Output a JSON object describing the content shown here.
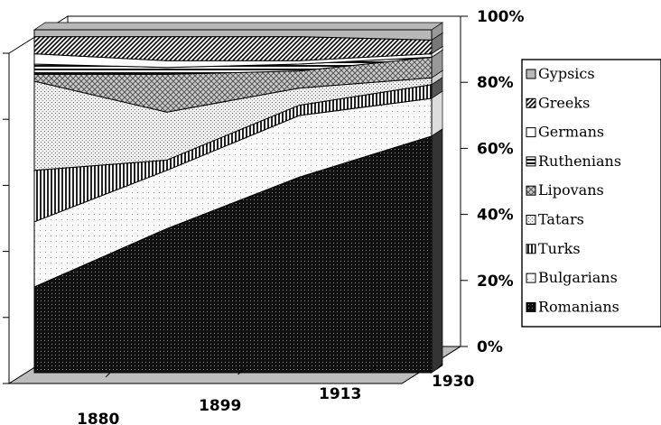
{
  "chart_data": {
    "type": "area",
    "stacked": "percent",
    "three_d": true,
    "categories": [
      "1880",
      "1899",
      "1913",
      "1930"
    ],
    "y_ticks": [
      "0%",
      "20%",
      "40%",
      "60%",
      "80%",
      "100%"
    ],
    "ylim": [
      0,
      100
    ],
    "legend_position": "right",
    "series": [
      {
        "name": "Romanians",
        "values": [
          25,
          42,
          57,
          69
        ],
        "fill": "dots-dark"
      },
      {
        "name": "Bulgarians",
        "values": [
          19,
          17,
          18,
          11
        ],
        "fill": "white-speckle"
      },
      {
        "name": "Turks",
        "values": [
          15,
          3,
          3,
          4
        ],
        "fill": "vertical-lines"
      },
      {
        "name": "Tatars",
        "values": [
          26,
          14,
          5,
          2
        ],
        "fill": "light-dots"
      },
      {
        "name": "Lipovans",
        "values": [
          2,
          11,
          5,
          6
        ],
        "fill": "cross-hatch"
      },
      {
        "name": "Ruthenians",
        "values": [
          3,
          2,
          2,
          0
        ],
        "fill": "horizontal-lines"
      },
      {
        "name": "Germans",
        "values": [
          3,
          2,
          1,
          1
        ],
        "fill": "white"
      },
      {
        "name": "Greeks",
        "values": [
          5,
          7,
          7,
          4
        ],
        "fill": "diagonal-lines"
      },
      {
        "name": "Gypsies",
        "values": [
          2,
          2,
          2,
          3
        ],
        "fill": "gray"
      }
    ],
    "legend_labels": [
      "Gypsics",
      "Greeks",
      "Germans",
      "Ruthenians",
      "Lipovans",
      "Tatars",
      "Turks",
      "Bulgarians",
      "Romanians"
    ]
  }
}
